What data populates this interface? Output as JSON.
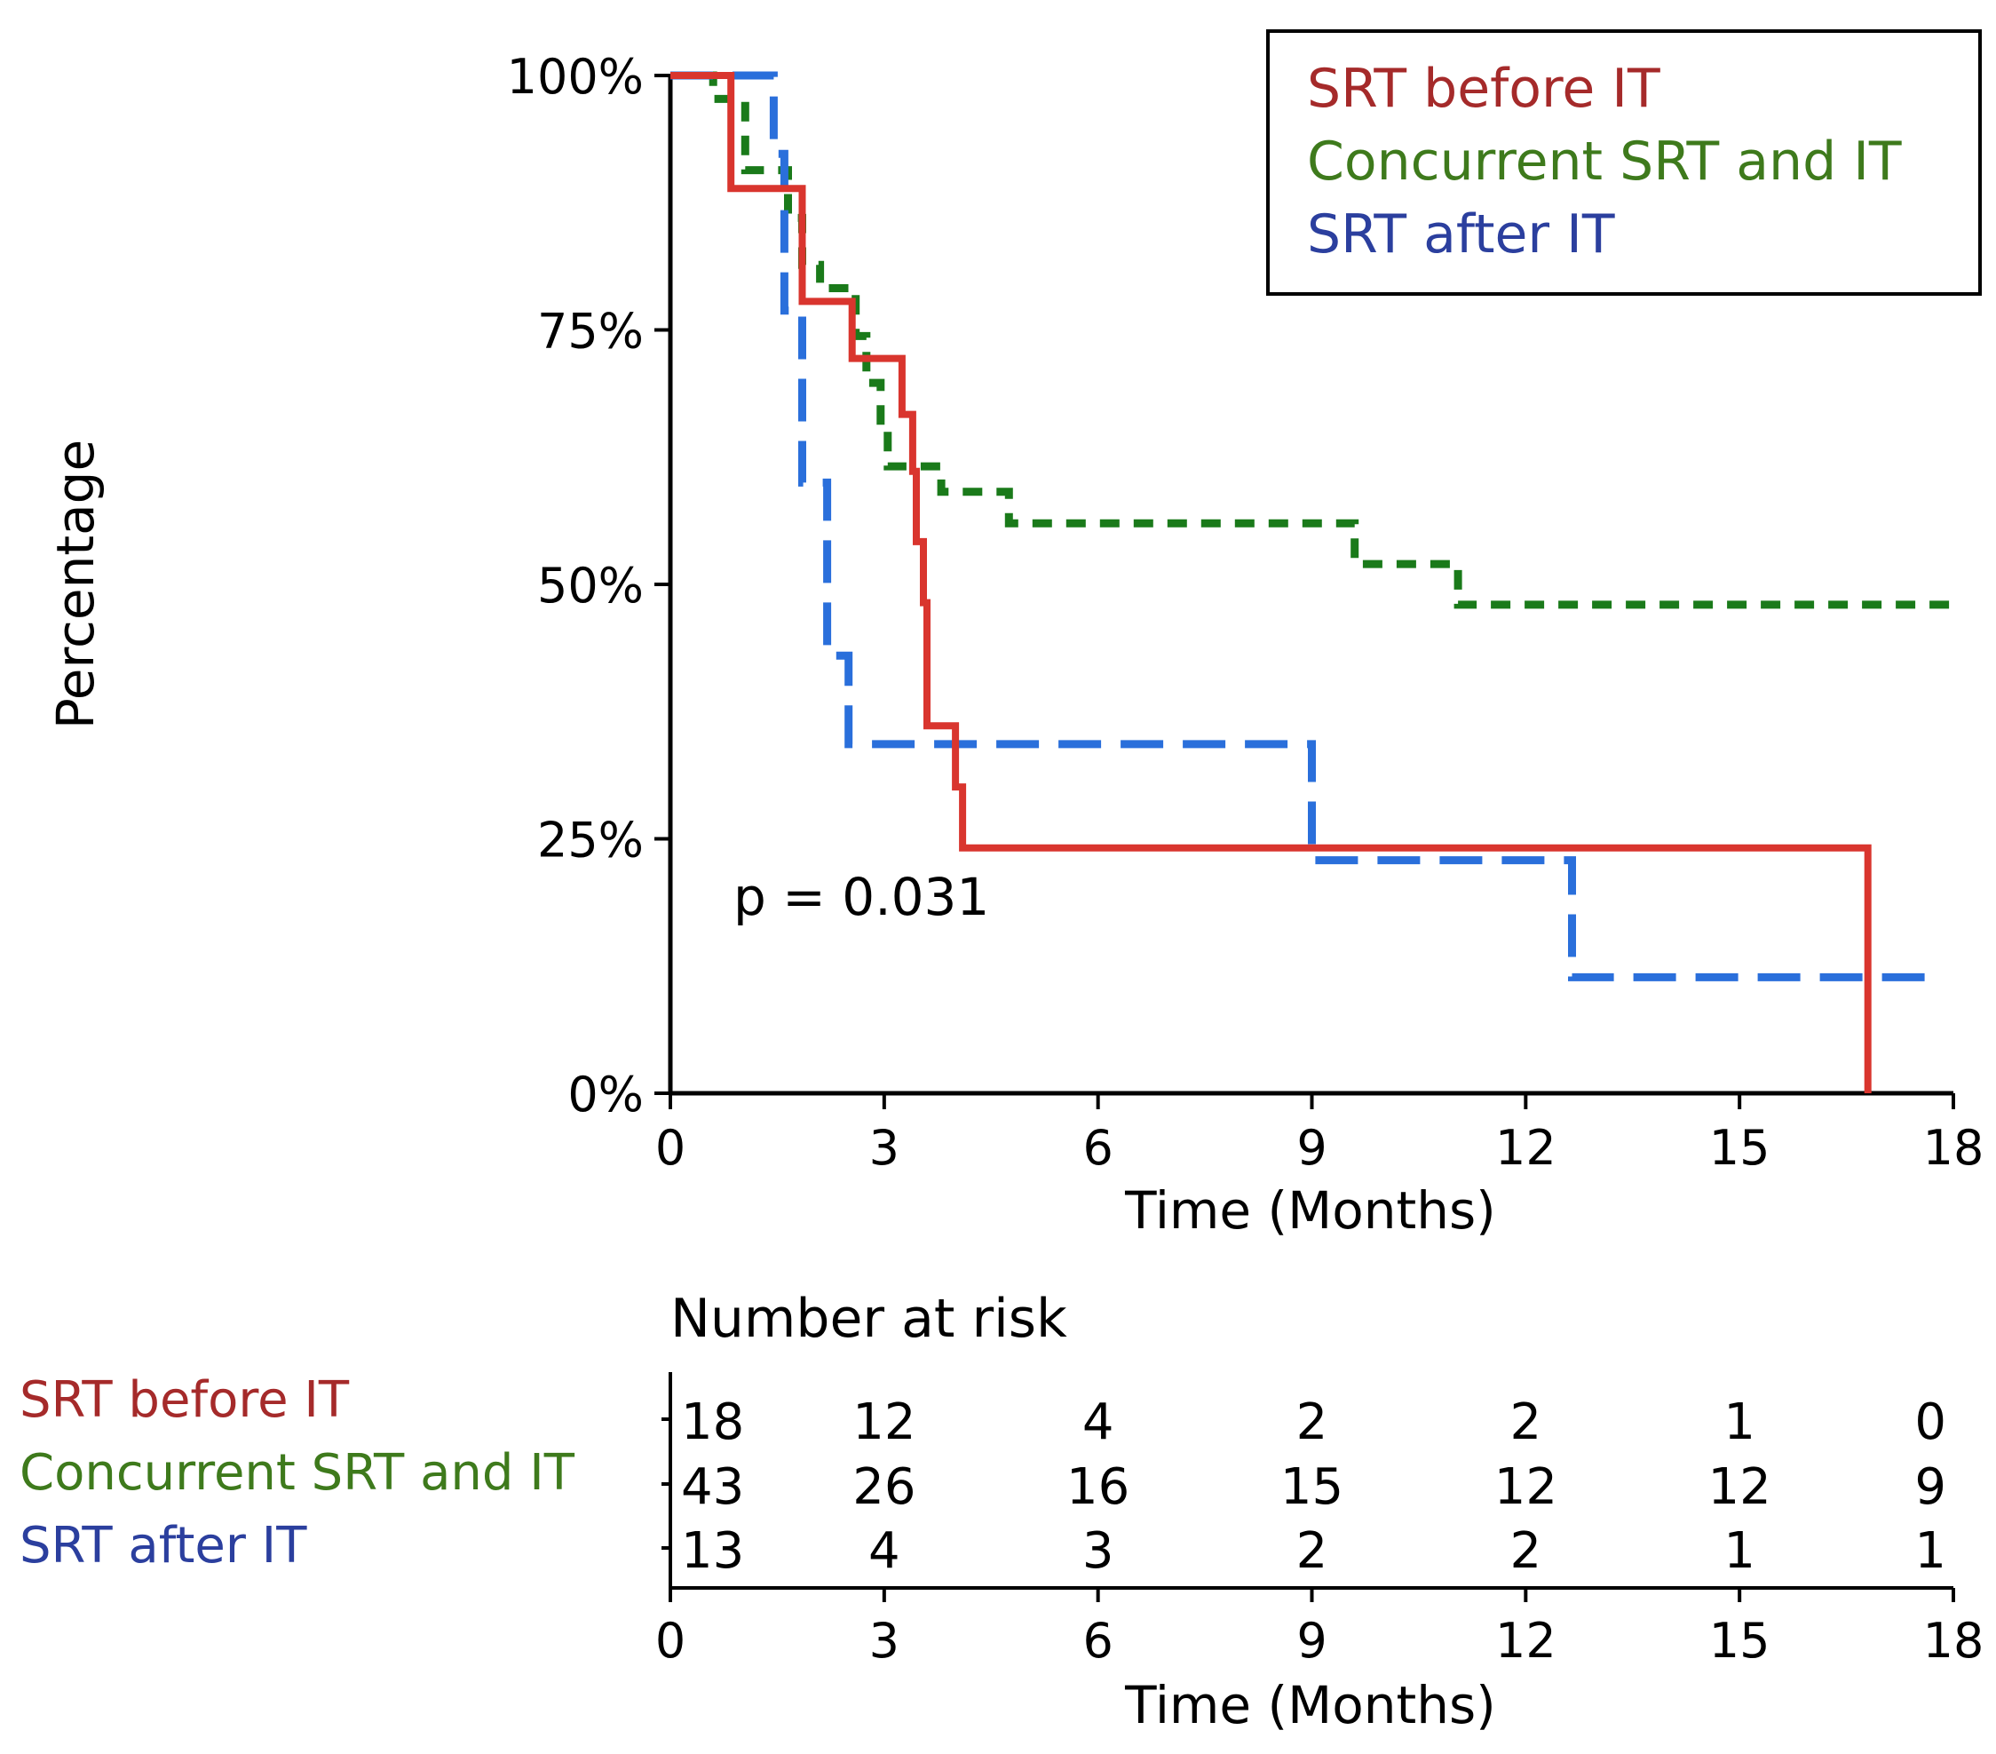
{
  "chart_data": {
    "type": "line",
    "step": true,
    "xlabel": "Time (Months)",
    "ylabel": "Percentage",
    "xlim": [
      0,
      18
    ],
    "ylim": [
      0,
      1
    ],
    "x_ticks": [
      0,
      3,
      6,
      9,
      12,
      15,
      18
    ],
    "x_tick_labels": [
      "0",
      "3",
      "6",
      "9",
      "12",
      "15",
      "18"
    ],
    "y_ticks": [
      0,
      0.25,
      0.5,
      0.75,
      1
    ],
    "y_tick_labels": [
      "0%",
      "25%",
      "50%",
      "75%",
      "100%"
    ],
    "annotation": "p = 0.031",
    "legend_position": "top-right",
    "series": [
      {
        "name": "SRT before IT",
        "color": "#d9352e",
        "text_color": "#a52a2a",
        "dash": "solid",
        "points": [
          [
            0,
            1
          ],
          [
            0.85,
            1
          ],
          [
            0.85,
            0.889
          ],
          [
            1.85,
            0.889
          ],
          [
            1.85,
            0.778
          ],
          [
            2.55,
            0.778
          ],
          [
            2.55,
            0.722
          ],
          [
            3.25,
            0.722
          ],
          [
            3.25,
            0.667
          ],
          [
            3.4,
            0.667
          ],
          [
            3.4,
            0.611
          ],
          [
            3.45,
            0.611
          ],
          [
            3.45,
            0.542
          ],
          [
            3.55,
            0.542
          ],
          [
            3.55,
            0.482
          ],
          [
            3.6,
            0.482
          ],
          [
            3.6,
            0.361
          ],
          [
            4.0,
            0.361
          ],
          [
            4.0,
            0.301
          ],
          [
            4.1,
            0.301
          ],
          [
            4.1,
            0.241
          ],
          [
            16.8,
            0.241
          ],
          [
            16.8,
            0
          ]
        ]
      },
      {
        "name": "Concurrent SRT and IT",
        "color": "#1a7a1a",
        "text_color": "#3e7a1c",
        "dash": "dotted",
        "points": [
          [
            0,
            1
          ],
          [
            0.6,
            1
          ],
          [
            0.6,
            0.977
          ],
          [
            1.05,
            0.977
          ],
          [
            1.05,
            0.907
          ],
          [
            1.65,
            0.907
          ],
          [
            1.65,
            0.86
          ],
          [
            1.85,
            0.86
          ],
          [
            1.85,
            0.814
          ],
          [
            2.1,
            0.814
          ],
          [
            2.1,
            0.791
          ],
          [
            2.6,
            0.791
          ],
          [
            2.6,
            0.744
          ],
          [
            2.75,
            0.744
          ],
          [
            2.75,
            0.698
          ],
          [
            2.95,
            0.698
          ],
          [
            2.95,
            0.651
          ],
          [
            3.05,
            0.651
          ],
          [
            3.05,
            0.616
          ],
          [
            3.8,
            0.616
          ],
          [
            3.8,
            0.591
          ],
          [
            4.75,
            0.591
          ],
          [
            4.75,
            0.56
          ],
          [
            9.6,
            0.56
          ],
          [
            9.6,
            0.52
          ],
          [
            11.05,
            0.52
          ],
          [
            11.05,
            0.48
          ],
          [
            18,
            0.48
          ]
        ]
      },
      {
        "name": "SRT after IT",
        "color": "#2a6fdb",
        "text_color": "#2b3f9e",
        "dash": "dashed",
        "points": [
          [
            0,
            1
          ],
          [
            1.45,
            1
          ],
          [
            1.45,
            0.923
          ],
          [
            1.6,
            0.923
          ],
          [
            1.6,
            0.769
          ],
          [
            1.85,
            0.769
          ],
          [
            1.85,
            0.6
          ],
          [
            2.2,
            0.6
          ],
          [
            2.2,
            0.43
          ],
          [
            2.5,
            0.43
          ],
          [
            2.5,
            0.343
          ],
          [
            9.0,
            0.343
          ],
          [
            9.0,
            0.229
          ],
          [
            12.65,
            0.229
          ],
          [
            12.65,
            0.114
          ],
          [
            17.85,
            0.114
          ]
        ]
      }
    ],
    "risk_table": {
      "title": "Number at risk",
      "xlabel": "Time (Months)",
      "times": [
        0,
        3,
        6,
        9,
        12,
        15,
        18
      ],
      "time_labels": [
        "0",
        "3",
        "6",
        "9",
        "12",
        "15",
        "18"
      ],
      "rows": [
        {
          "name": "SRT before IT",
          "values": [
            "18",
            "12",
            "4",
            "2",
            "2",
            "1",
            "0"
          ]
        },
        {
          "name": "Concurrent SRT and IT",
          "values": [
            "43",
            "26",
            "16",
            "15",
            "12",
            "12",
            "9"
          ]
        },
        {
          "name": "SRT after IT",
          "values": [
            "13",
            "4",
            "3",
            "2",
            "2",
            "1",
            "1"
          ]
        }
      ]
    }
  }
}
